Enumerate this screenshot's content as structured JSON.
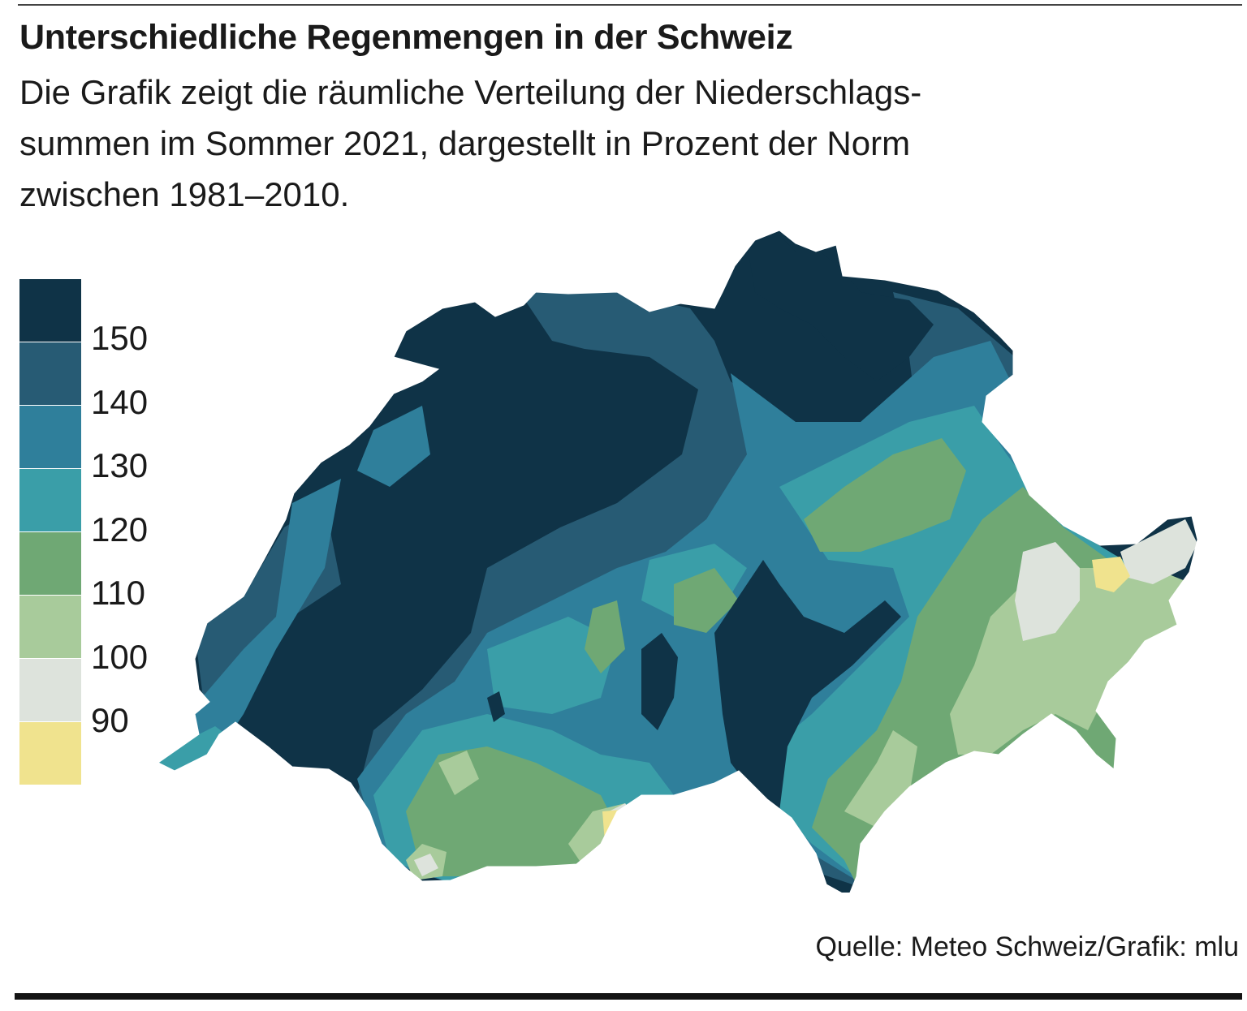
{
  "title": "Unterschiedliche Regenmengen in der Schweiz",
  "subtitle_lines": [
    "Die Grafik zeigt  die räumliche Verteilung der Niederschlags-",
    "summen im Sommer 2021, dargestellt in Prozent der Norm",
    "zwischen 1981–2010."
  ],
  "legend": {
    "bins": [
      {
        "label": "150",
        "color": "#0f3347"
      },
      {
        "label": "140",
        "color": "#275b74"
      },
      {
        "label": "130",
        "color": "#2f7f9b"
      },
      {
        "label": "120",
        "color": "#3a9ea8"
      },
      {
        "label": "110",
        "color": "#6fa874"
      },
      {
        "label": "100",
        "color": "#a8cb9b"
      },
      {
        "label": "90",
        "color": "#dde3dc"
      },
      {
        "label": "",
        "color": "#f0e38e"
      }
    ]
  },
  "source": "Quelle: Meteo Schweiz/Grafik: mlu"
}
